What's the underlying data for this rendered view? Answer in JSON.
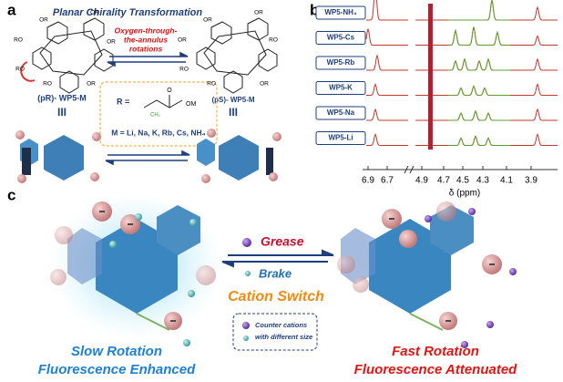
{
  "panel_a": {
    "label": "a",
    "title": "Planar Chirality Transformation",
    "arrow_label": [
      "Oxygen-through-",
      "the-annulus",
      "rotations"
    ],
    "left_name": "(pR)- WP5-M",
    "right_name": "(pS)- WP5-M",
    "equiv_left": "III",
    "equiv_right": "III",
    "r_equals": "R =",
    "carbonyl_o": "O",
    "om": "OM",
    "ch2": "CH₂",
    "metals": "M = Li, Na, K, Rb, Cs, NH₄",
    "or_labels": [
      "OR",
      "OR",
      "RO",
      "OR",
      "RO",
      "RO",
      "OR",
      "OR",
      "OR",
      "RO",
      "OR",
      "RO",
      "RO",
      "OR"
    ]
  },
  "panel_b": {
    "label": "b",
    "samples": [
      "WP5-NH₄",
      "WP5-Cs",
      "WP5-Rb",
      "WP5-K",
      "WP5-Na",
      "WP5-Li"
    ],
    "ticks": [
      "6.9",
      "6.7",
      "4.9",
      "4.7",
      "4.5",
      "4.3",
      "4.1",
      "3.9"
    ],
    "xlabel": "δ (ppm)"
  },
  "panel_c": {
    "label": "c",
    "grease": "Grease",
    "brake": "Brake",
    "switch": "Cation Switch",
    "left_title": [
      "Slow Rotation",
      "Fluorescence Enhanced"
    ],
    "right_title": [
      "Fast Rotation",
      "Fluorescence Attenuated"
    ],
    "legend": [
      "Counter cations",
      "with different size"
    ]
  }
}
